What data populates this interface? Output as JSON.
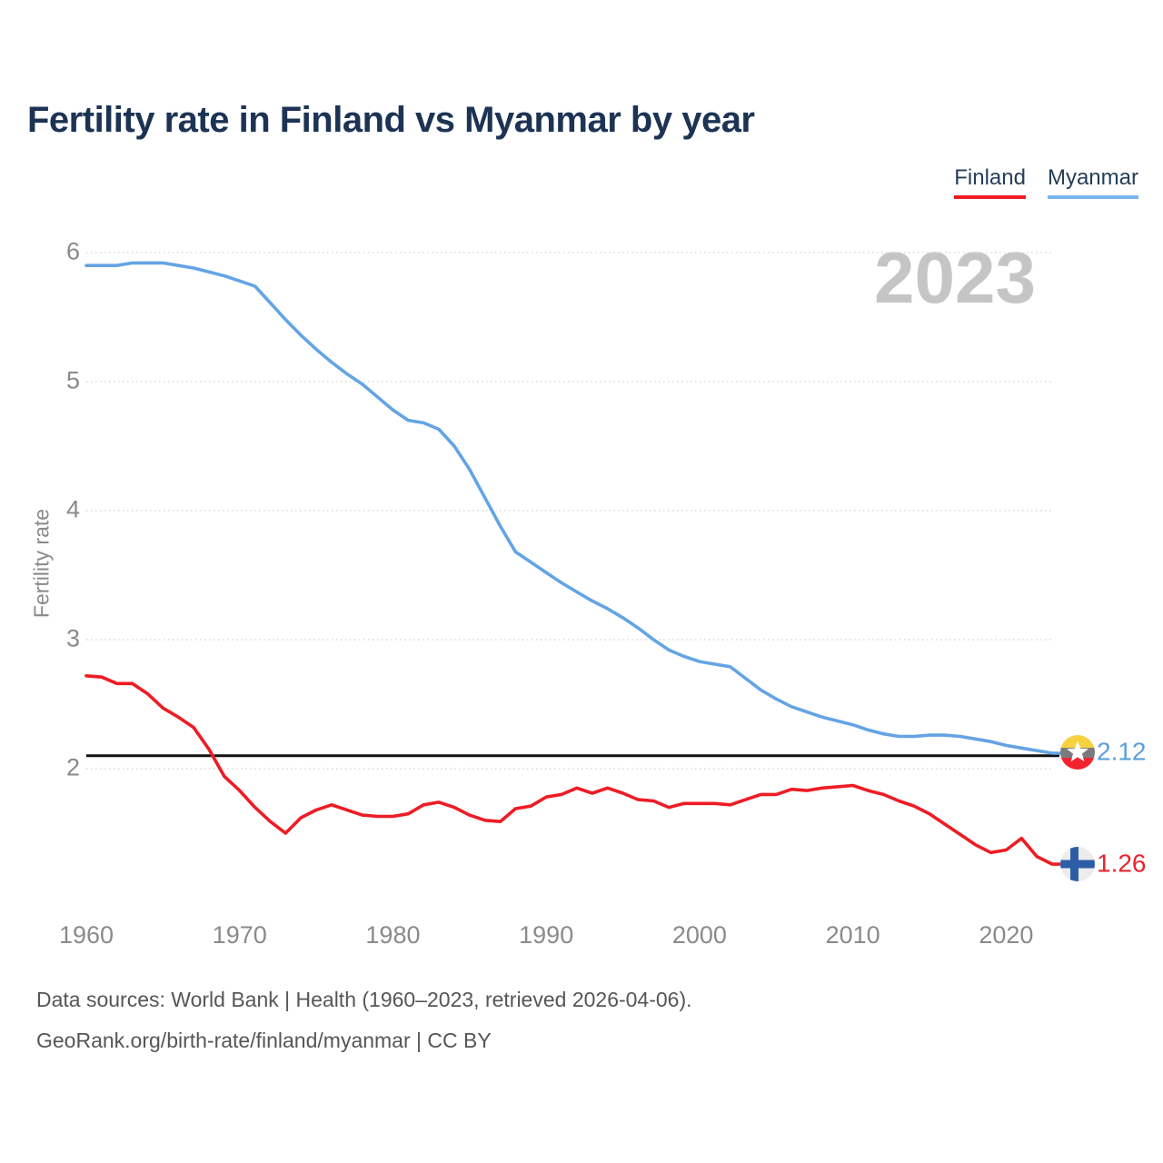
{
  "header": {
    "title": "Fertility rate in Finland vs Myanmar by year"
  },
  "legend": {
    "items": [
      {
        "label": "Finland",
        "color": "#ee1c25"
      },
      {
        "label": "Myanmar",
        "color": "#79b4ec"
      }
    ]
  },
  "watermark": "2023",
  "chart_data": {
    "type": "line",
    "title": "Fertility rate in Finland vs Myanmar by year",
    "xlabel": "",
    "ylabel": "Fertility rate",
    "grid": "horizontal-dotted",
    "legend_position": "top-right",
    "ylim": [
      1.15,
      6.15
    ],
    "years": {
      "start": 1960,
      "end": 2023,
      "step": 1
    },
    "xticks": [
      "1960",
      "1970",
      "1980",
      "1990",
      "2000",
      "2010",
      "2020"
    ],
    "yticks": [
      "6",
      "5",
      "4",
      "3",
      "2"
    ],
    "reference_line": 2.1,
    "series": [
      {
        "name": "Finland",
        "color": "#ee1c25",
        "end_label": "1.26",
        "end_icon": "finland-flag-icon",
        "values": [
          2.72,
          2.71,
          2.66,
          2.66,
          2.58,
          2.47,
          2.4,
          2.32,
          2.15,
          1.94,
          1.83,
          1.7,
          1.59,
          1.5,
          1.62,
          1.68,
          1.72,
          1.68,
          1.64,
          1.63,
          1.63,
          1.65,
          1.72,
          1.74,
          1.7,
          1.64,
          1.6,
          1.59,
          1.69,
          1.71,
          1.78,
          1.8,
          1.85,
          1.81,
          1.85,
          1.81,
          1.76,
          1.75,
          1.7,
          1.73,
          1.73,
          1.73,
          1.72,
          1.76,
          1.8,
          1.8,
          1.84,
          1.83,
          1.85,
          1.86,
          1.87,
          1.83,
          1.8,
          1.75,
          1.71,
          1.65,
          1.57,
          1.49,
          1.41,
          1.35,
          1.37,
          1.46,
          1.32,
          1.26
        ]
      },
      {
        "name": "Myanmar",
        "color": "#64a4e4",
        "end_label": "2.12",
        "end_icon": "myanmar-flag-icon",
        "values": [
          5.9,
          5.9,
          5.9,
          5.92,
          5.92,
          5.92,
          5.9,
          5.88,
          5.85,
          5.82,
          5.78,
          5.74,
          5.61,
          5.48,
          5.36,
          5.25,
          5.15,
          5.06,
          4.98,
          4.88,
          4.78,
          4.7,
          4.68,
          4.63,
          4.5,
          4.32,
          4.1,
          3.88,
          3.68,
          3.6,
          3.52,
          3.44,
          3.37,
          3.3,
          3.24,
          3.17,
          3.09,
          3.0,
          2.92,
          2.87,
          2.83,
          2.81,
          2.79,
          2.7,
          2.61,
          2.54,
          2.48,
          2.44,
          2.4,
          2.37,
          2.34,
          2.3,
          2.27,
          2.25,
          2.25,
          2.26,
          2.26,
          2.25,
          2.23,
          2.21,
          2.18,
          2.16,
          2.14,
          2.12
        ]
      }
    ]
  },
  "footer": {
    "line1": "Data sources: World Bank | Health (1960–2023, retrieved 2026-04-06).",
    "line2": "GeoRank.org/birth-rate/finland/myanmar | CC BY"
  }
}
